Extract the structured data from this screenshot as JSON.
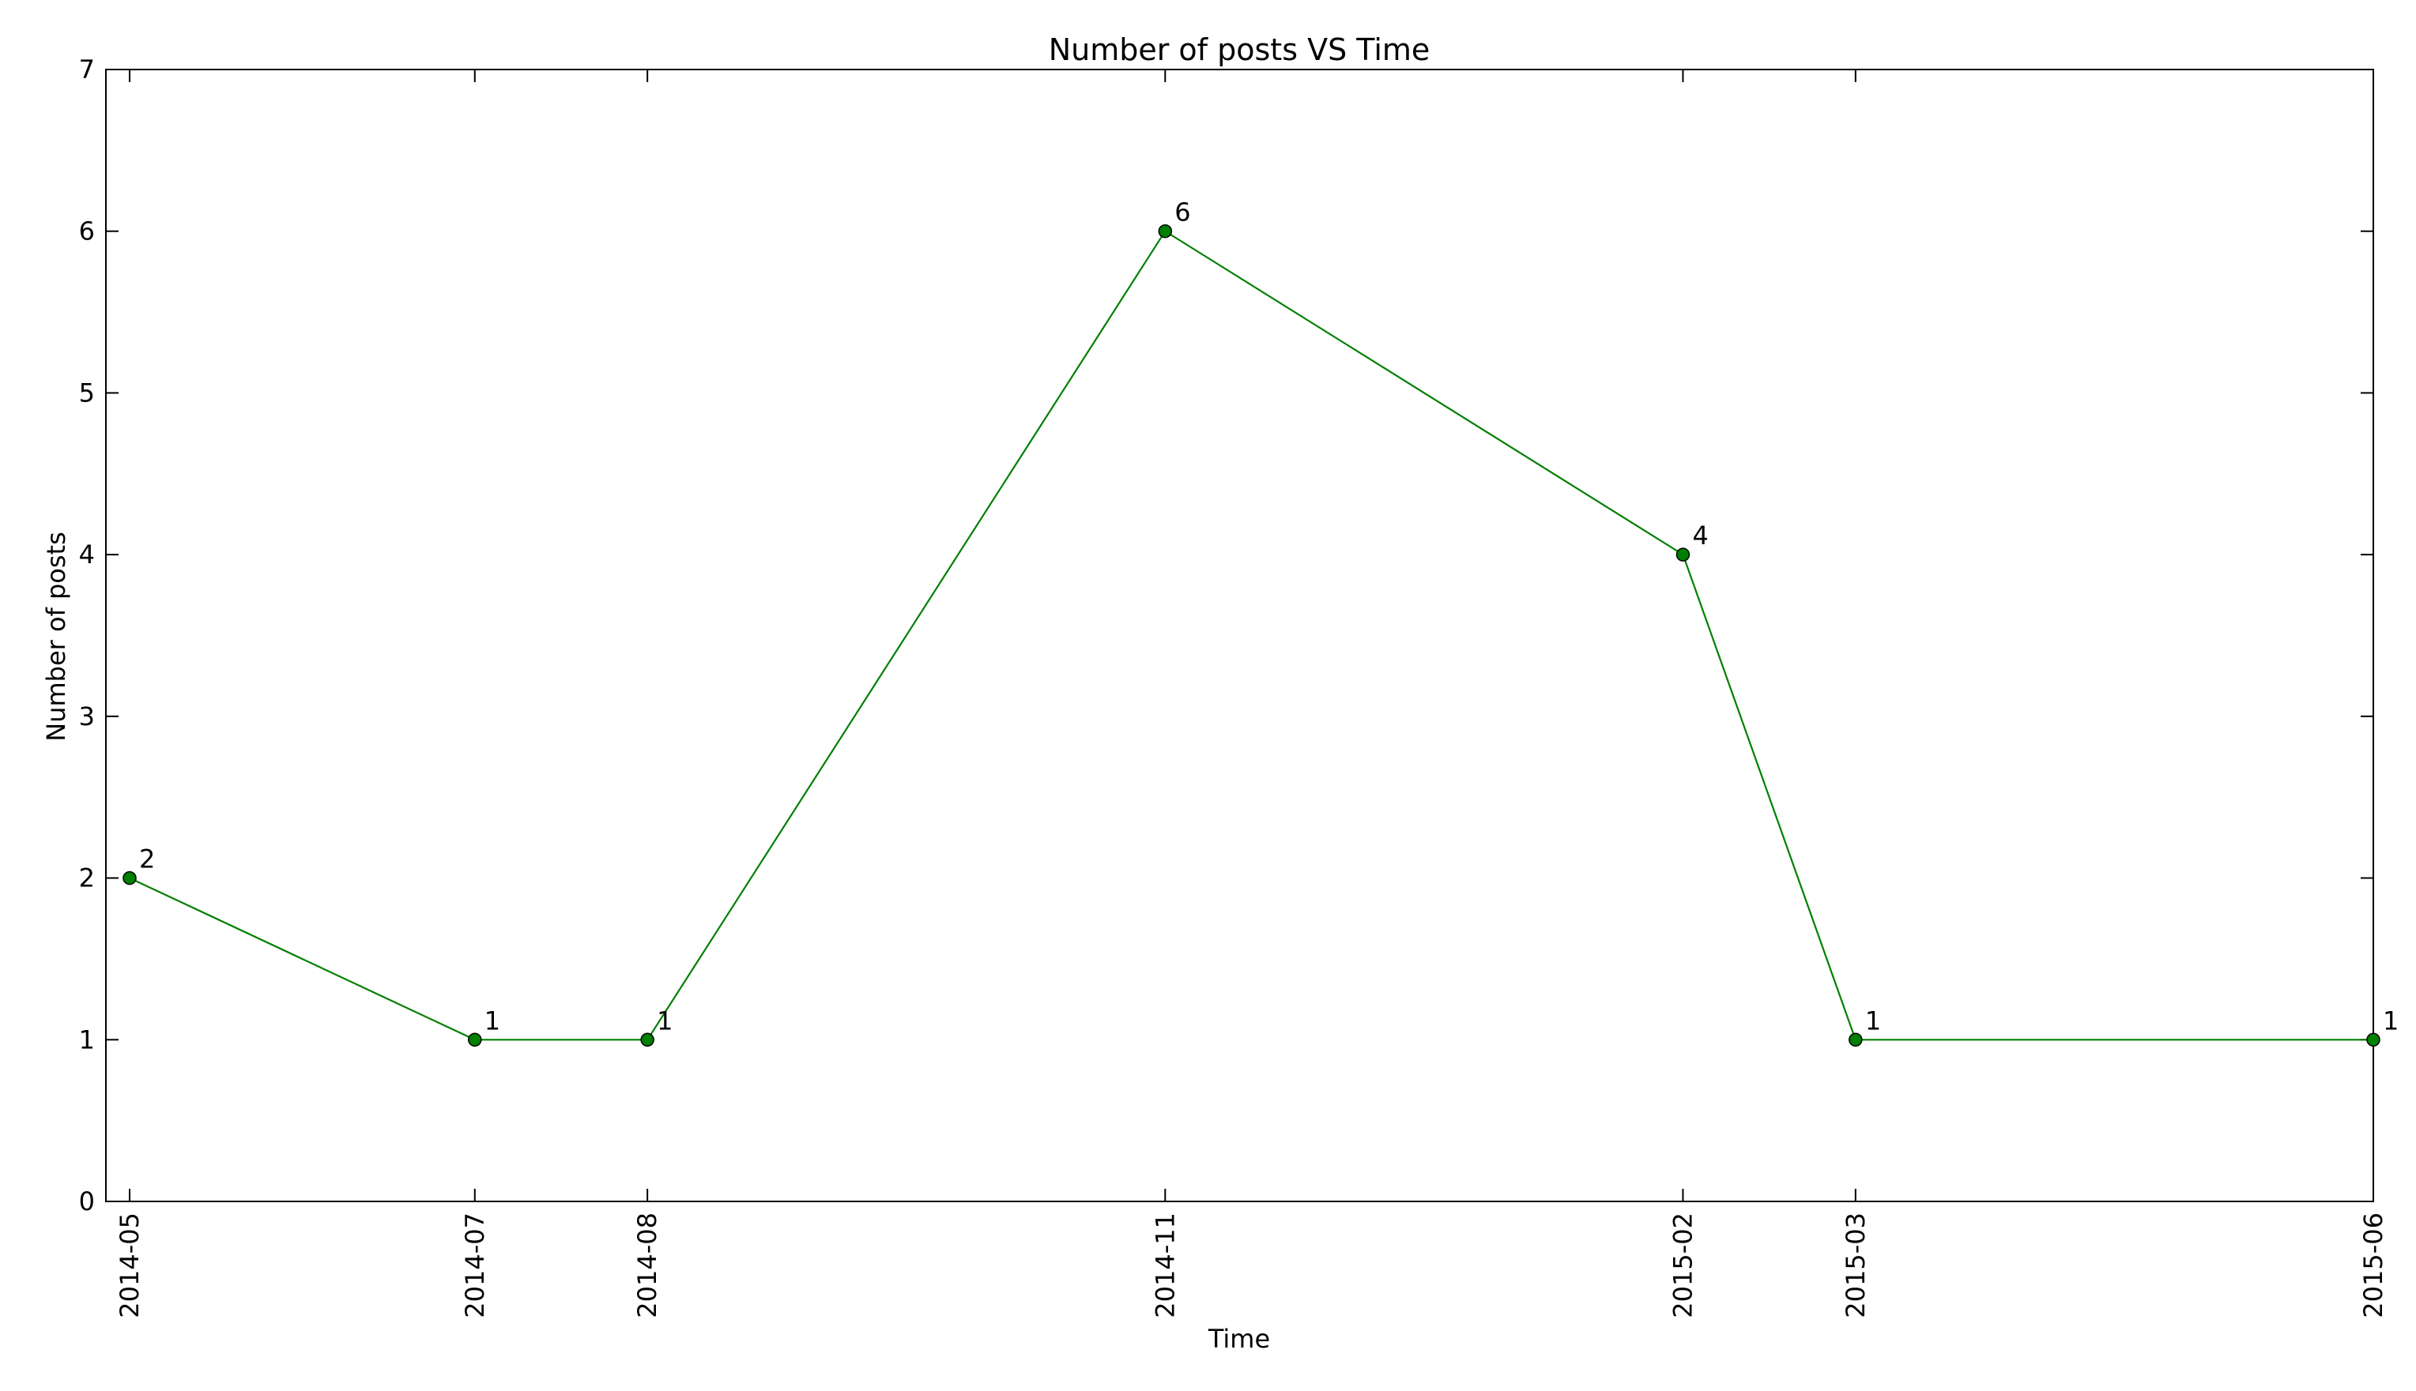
{
  "chart_data": {
    "type": "line",
    "title": "Number of posts VS Time",
    "xlabel": "Time",
    "ylabel": "Number of posts",
    "x": [
      "2014-05",
      "2014-07",
      "2014-08",
      "2014-11",
      "2015-02",
      "2015-03",
      "2015-06"
    ],
    "xlim": [
      "2014-05",
      "2015-06"
    ],
    "ylim": [
      0,
      7
    ],
    "yticks": [
      0,
      1,
      2,
      3,
      4,
      5,
      6,
      7
    ],
    "grid": false,
    "legend": "none",
    "series": [
      {
        "values": [
          2,
          1,
          1,
          6,
          4,
          1,
          1
        ],
        "color": "#008000",
        "marker": "circle",
        "data_labels": [
          "2",
          "1",
          "1",
          "6",
          "4",
          "1",
          "1"
        ]
      }
    ]
  }
}
